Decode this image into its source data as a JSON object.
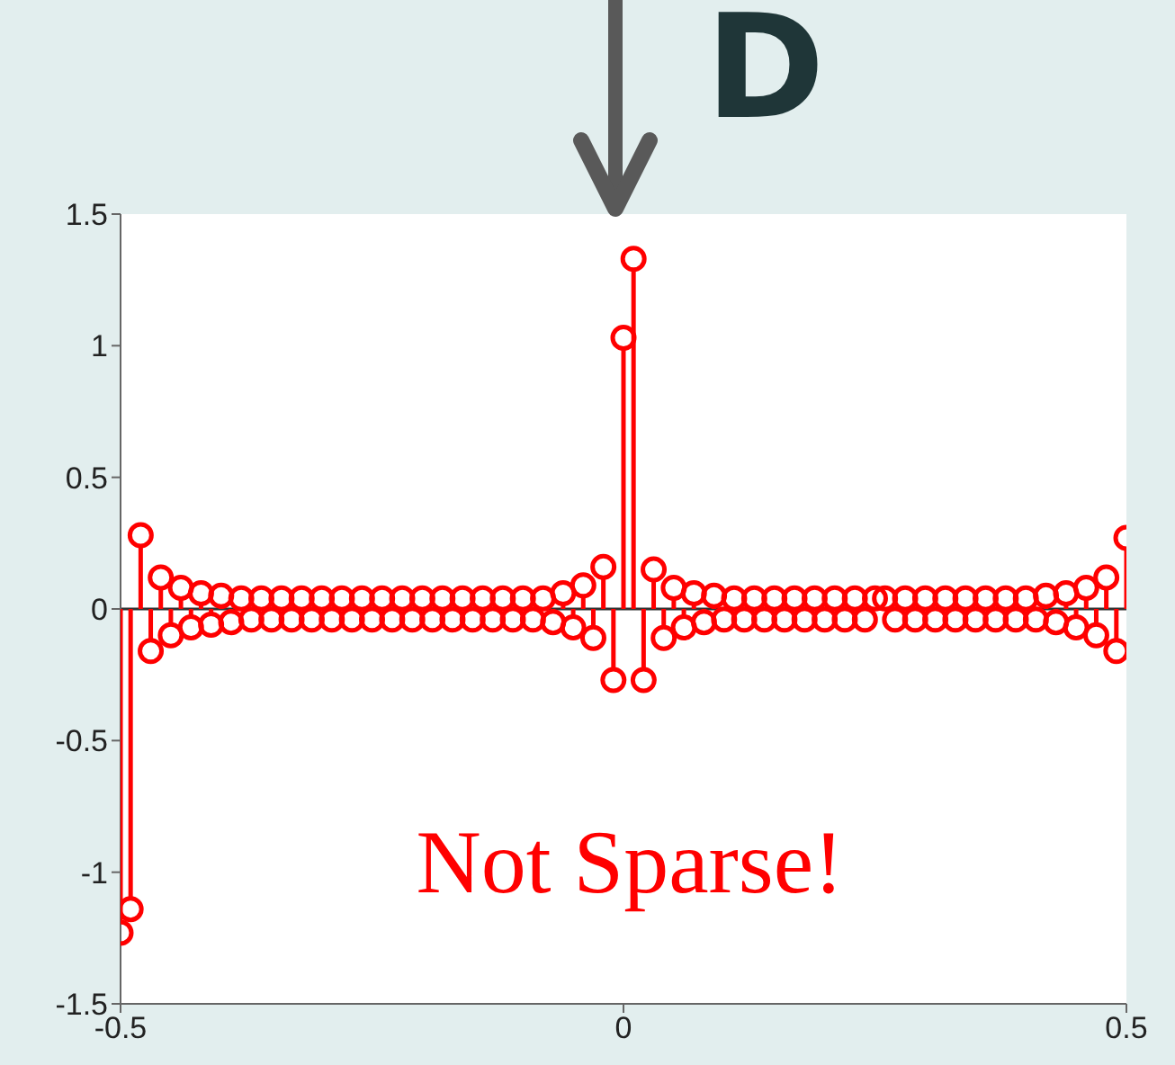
{
  "chart_data": {
    "type": "lollipop",
    "x": [
      -0.5,
      -0.49,
      -0.48,
      -0.47,
      -0.46,
      -0.45,
      -0.44,
      -0.43,
      -0.42,
      -0.41,
      -0.4,
      -0.39,
      -0.38,
      -0.37,
      -0.36,
      -0.35,
      -0.34,
      -0.33,
      -0.32,
      -0.31,
      -0.3,
      -0.29,
      -0.28,
      -0.27,
      -0.26,
      -0.25,
      -0.24,
      -0.23,
      -0.22,
      -0.21,
      -0.2,
      -0.19,
      -0.18,
      -0.17,
      -0.16,
      -0.15,
      -0.14,
      -0.13,
      -0.12,
      -0.11,
      -0.1,
      -0.09,
      -0.08,
      -0.07,
      -0.06,
      -0.05,
      -0.04,
      -0.03,
      -0.02,
      -0.01,
      0,
      0.01,
      0.02,
      0.03,
      0.04,
      0.05,
      0.06,
      0.07,
      0.08,
      0.09,
      0.1,
      0.11,
      0.12,
      0.13,
      0.14,
      0.15,
      0.16,
      0.17,
      0.18,
      0.19,
      0.2,
      0.21,
      0.22,
      0.23,
      0.24,
      0.25,
      0.26,
      0.27,
      0.28,
      0.29,
      0.3,
      0.31,
      0.32,
      0.33,
      0.34,
      0.35,
      0.36,
      0.37,
      0.38,
      0.39,
      0.4,
      0.41,
      0.42,
      0.43,
      0.44,
      0.45,
      0.46,
      0.47,
      0.48,
      0.49,
      0.5
    ],
    "series": [
      {
        "color": "#ff0000",
        "values": [
          -1.23,
          -1.14,
          0.28,
          -0.16,
          0.12,
          -0.1,
          0.08,
          -0.07,
          0.06,
          -0.06,
          0.05,
          -0.05,
          0.04,
          -0.04,
          0.04,
          -0.04,
          0.04,
          -0.04,
          0.04,
          -0.04,
          0.04,
          -0.04,
          0.04,
          -0.04,
          0.04,
          -0.04,
          0.04,
          -0.04,
          0.04,
          -0.04,
          0.04,
          -0.04,
          0.04,
          -0.04,
          0.04,
          -0.04,
          0.04,
          -0.04,
          0.04,
          -0.04,
          0.04,
          -0.04,
          0.04,
          -0.05,
          0.06,
          -0.07,
          0.09,
          -0.11,
          0.16,
          -0.27,
          1.03,
          1.33,
          -0.27,
          0.15,
          -0.11,
          0.08,
          -0.07,
          0.06,
          -0.05,
          0.05,
          -0.04,
          0.04,
          -0.04,
          0.04,
          -0.04,
          0.04,
          -0.04,
          0.04,
          -0.04,
          0.04,
          -0.04,
          0.04,
          -0.04,
          0.04,
          -0.04,
          0.04,
          0.04,
          -0.04,
          0.04,
          -0.04,
          0.04,
          -0.04,
          0.04,
          -0.04,
          0.04,
          -0.04,
          0.04,
          -0.04,
          0.04,
          -0.04,
          0.04,
          -0.04,
          0.05,
          -0.05,
          0.06,
          -0.07,
          0.08,
          -0.1,
          0.12,
          -0.16,
          0.27
        ]
      }
    ],
    "xlim": [
      -0.5,
      0.5
    ],
    "xticks": [
      -0.5,
      0,
      0.5
    ],
    "ylim": [
      -1.5,
      1.5
    ],
    "yticks": [
      -1.5,
      -1,
      -0.5,
      0,
      0.5,
      1,
      1.5
    ],
    "marker": "circle",
    "ref_lines": [
      {
        "axis": "y",
        "value": 0,
        "color": "#333333"
      }
    ],
    "annotations": [
      "D",
      "Not Sparse!"
    ]
  }
}
